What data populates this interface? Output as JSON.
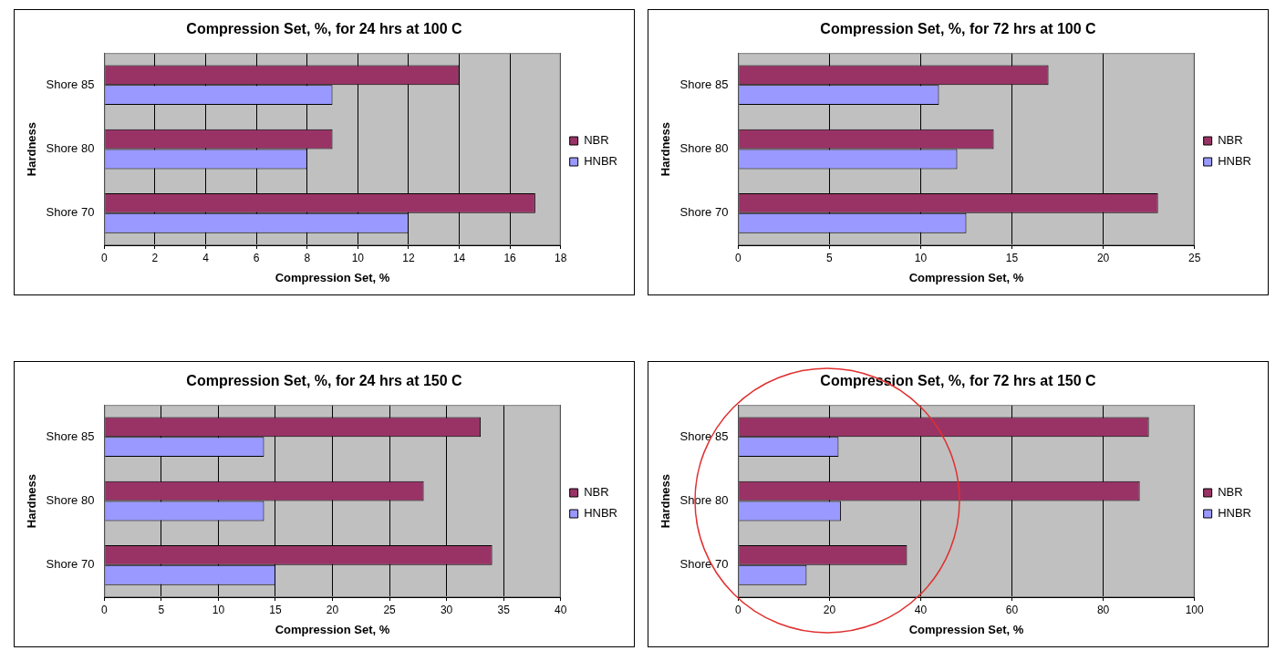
{
  "chart_data": [
    {
      "type": "bar",
      "orientation": "horizontal",
      "title": "Compression Set, %, for 24 hrs at 100 C",
      "x_label": "Compression Set, %",
      "y_label": "Hardness",
      "categories": [
        "Shore 85",
        "Shore 80",
        "Shore 70"
      ],
      "series": [
        {
          "name": "NBR",
          "color": "#993366",
          "values": [
            14,
            9,
            17
          ]
        },
        {
          "name": "HNBR",
          "color": "#9999ff",
          "values": [
            9,
            8,
            12
          ]
        }
      ],
      "xlim": [
        0,
        18
      ],
      "xticks": [
        0,
        2,
        4,
        6,
        8,
        10,
        12,
        14,
        16,
        18
      ],
      "grid": true,
      "legend": "right"
    },
    {
      "type": "bar",
      "orientation": "horizontal",
      "title": "Compression Set, %, for 72 hrs at 100 C",
      "x_label": "Compression Set, %",
      "y_label": "Hardness",
      "categories": [
        "Shore 85",
        "Shore 80",
        "Shore 70"
      ],
      "series": [
        {
          "name": "NBR",
          "color": "#993366",
          "values": [
            17,
            14,
            23
          ]
        },
        {
          "name": "HNBR",
          "color": "#9999ff",
          "values": [
            11,
            12,
            12.5
          ]
        }
      ],
      "xlim": [
        0,
        25
      ],
      "xticks": [
        0,
        5,
        10,
        15,
        20,
        25
      ],
      "grid": true,
      "legend": "right"
    },
    {
      "type": "bar",
      "orientation": "horizontal",
      "title": "Compression Set, %, for 24 hrs at 150 C",
      "x_label": "Compression Set, %",
      "y_label": "Hardness",
      "categories": [
        "Shore 85",
        "Shore 80",
        "Shore 70"
      ],
      "series": [
        {
          "name": "NBR",
          "color": "#993366",
          "values": [
            33,
            28,
            34
          ]
        },
        {
          "name": "HNBR",
          "color": "#9999ff",
          "values": [
            14,
            14,
            15
          ]
        }
      ],
      "xlim": [
        0,
        40
      ],
      "xticks": [
        0,
        5,
        10,
        15,
        20,
        25,
        30,
        35,
        40
      ],
      "grid": true,
      "legend": "right"
    },
    {
      "type": "bar",
      "orientation": "horizontal",
      "title": "Compression Set, %, for 72 hrs at 150 C",
      "x_label": "Compression Set, %",
      "y_label": "Hardness",
      "categories": [
        "Shore 85",
        "Shore 80",
        "Shore 70"
      ],
      "series": [
        {
          "name": "NBR",
          "color": "#993366",
          "values": [
            90,
            88,
            37
          ]
        },
        {
          "name": "HNBR",
          "color": "#9999ff",
          "values": [
            22,
            22.5,
            15
          ]
        }
      ],
      "xlim": [
        0,
        100
      ],
      "xticks": [
        0,
        20,
        40,
        60,
        80,
        100
      ],
      "grid": true,
      "legend": "right"
    }
  ]
}
